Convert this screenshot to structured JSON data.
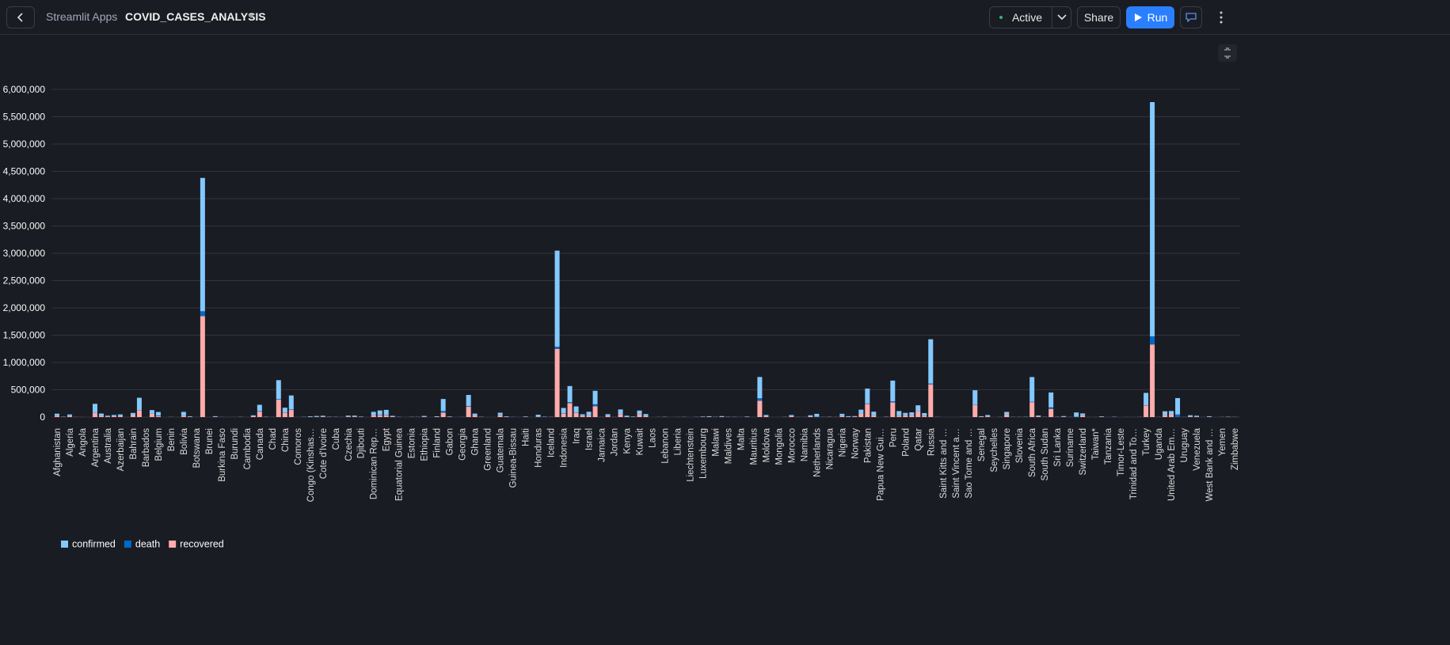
{
  "header": {
    "breadcrumb": "Streamlit Apps",
    "app_name": "COVID_CASES_ANALYSIS",
    "status": "Active",
    "share": "Share",
    "run": "Run"
  },
  "chart_data": {
    "type": "stacked_bar",
    "categories": [
      "Afghanistan",
      null,
      "Algeria",
      null,
      "Angola",
      null,
      "Argentina",
      null,
      "Australia",
      null,
      "Azerbaijan",
      null,
      "Bahrain",
      null,
      "Barbados",
      null,
      "Belgium",
      null,
      "Benin",
      null,
      "Bolivia",
      null,
      "Botswana",
      null,
      "Brunei",
      null,
      "Burkina Faso",
      null,
      "Burundi",
      null,
      "Cambodia",
      null,
      "Canada",
      null,
      "Chad",
      null,
      "China",
      null,
      "Comoros",
      null,
      "Congo (Kinshas…",
      null,
      "Cote d'Ivoire",
      null,
      "Cuba",
      null,
      "Czechia",
      null,
      "Djibouti",
      null,
      "Dominican Rep…",
      null,
      "Egypt",
      null,
      "Equatorial Guinea",
      null,
      "Estonia",
      null,
      "Ethiopia",
      null,
      "Finland",
      null,
      "Gabon",
      null,
      "Georgia",
      null,
      "Ghana",
      null,
      "Greenland",
      null,
      "Guatemala",
      null,
      "Guinea-Bissau",
      null,
      "Haiti",
      null,
      "Honduras",
      null,
      "Iceland",
      null,
      "Indonesia",
      null,
      "Iraq",
      null,
      "Israel",
      null,
      "Jamaica",
      null,
      "Jordan",
      null,
      "Kenya",
      null,
      "Kuwait",
      null,
      "Laos",
      null,
      "Lebanon",
      null,
      "Liberia",
      null,
      "Liechtenstein",
      null,
      "Luxembourg",
      null,
      "Malawi",
      null,
      "Maldives",
      null,
      "Malta",
      null,
      "Mauritius",
      null,
      "Moldova",
      null,
      "Mongolia",
      null,
      "Morocco",
      null,
      "Namibia",
      null,
      "Netherlands",
      null,
      "Nicaragua",
      null,
      "Nigeria",
      null,
      "Norway",
      null,
      "Pakistan",
      null,
      "Papua New Gui…",
      null,
      "Peru",
      null,
      "Poland",
      null,
      "Qatar",
      null,
      "Russia",
      null,
      "Saint Kitts and …",
      null,
      "Saint Vincent a…",
      null,
      "Sao Tome and …",
      null,
      "Senegal",
      null,
      "Seychelles",
      null,
      "Singapore",
      null,
      "Slovenia",
      null,
      "South Africa",
      null,
      "South Sudan",
      null,
      "Sri Lanka",
      null,
      "Suriname",
      null,
      "Switzerland",
      null,
      "Taiwan*",
      null,
      "Tanzania",
      null,
      "Timor-Leste",
      null,
      "Trinidad and To…",
      null,
      "Turkey",
      null,
      "Uganda",
      null,
      "United Arab Em…",
      null,
      "Uruguay",
      null,
      "Venezuela",
      null,
      "West Bank and …",
      null,
      "Yemen",
      null,
      "Zimbabwe"
    ],
    "series": [
      {
        "name": "confirmed",
        "color": "#83c9ff",
        "values": [
          36000,
          4900,
          28000,
          900,
          950,
          86,
          167000,
          37000,
          15300,
          20500,
          30000,
          380,
          39500,
          226000,
          110,
          67000,
          66400,
          48,
          1770,
          99,
          71000,
          10500,
          740,
          2442000,
          141,
          10600,
          1100,
          350,
          380,
          2300,
          230,
          17000,
          116000,
          4600,
          900,
          347000,
          86700,
          257000,
          350,
          3200,
          8900,
          15800,
          15300,
          4400,
          2500,
          1050,
          15500,
          13500,
          5000,
          18,
          64000,
          81000,
          92000,
          14600,
          3070,
          265,
          2030,
          2300,
          14500,
          27,
          7400,
          220000,
          7000,
          326,
          1100,
          206000,
          33600,
          4200,
          14,
          23,
          45000,
          7000,
          1950,
          340,
          7300,
          12,
          37000,
          4400,
          1850,
          1760000,
          102000,
          296000,
          112000,
          25900,
          63000,
          246000,
          800,
          31000,
          1170,
          84000,
          17000,
          7400,
          64000,
          33000,
          20,
          1200,
          3600,
          500,
          1150,
          2800,
          89,
          2000,
          6300,
          9700,
          3700,
          8900,
          3400,
          2500,
          700,
          6200,
          344,
          390000,
          23000,
          116,
          290,
          2600,
          21400,
          1700,
          1840,
          18700,
          53000,
          1560,
          3700,
          1130,
          41000,
          10000,
          9100,
          77000,
          274000,
          62000,
          60,
          4500,
          380000,
          82000,
          43000,
          50000,
          109000,
          45000,
          812000,
          1800,
          17,
          22,
          52,
          700,
          865,
          266000,
          9800,
          24000,
          114,
          1800,
          50000,
          2100,
          2000,
          3200,
          452000,
          14200,
          2300,
          272000,
          2800,
          11400,
          1400,
          79000,
          34000,
          670,
          467,
          7200,
          509,
          3300,
          24,
          870,
          148,
          1450,
          227000,
          4290000,
          1100,
          67000,
          59000,
          301000,
          1200,
          21000,
          15500,
          430,
          11500,
          10,
          1690,
          4600,
          2700
        ]
      },
      {
        "name": "death",
        "color": "#0068c9",
        "values": [
          1270,
          150,
          1150,
          52,
          41,
          3,
          3060,
          710,
          167,
          710,
          420,
          11,
          140,
          2960,
          7,
          540,
          9820,
          2,
          35,
          0,
          2650,
          295,
          2,
          87600,
          3,
          340,
          53,
          6,
          1,
          22,
          0,
          390,
          8900,
          59,
          75,
          9100,
          4660,
          8800,
          7,
          54,
          210,
          115,
          96,
          139,
          87,
          19,
          375,
          613,
          58,
          0,
          1080,
          5500,
          4650,
          410,
          51,
          0,
          69,
          34,
          230,
          1,
          329,
          30200,
          49,
          8,
          16,
          9120,
          168,
          203,
          0,
          0,
          1760,
          45,
          26,
          18,
          158,
          0,
          1050,
          596,
          10,
          38000,
          4900,
          16000,
          4460,
          1760,
          470,
          35100,
          10,
          1000,
          11,
          600,
          280,
          185,
          440,
          1300,
          0,
          31,
          51,
          12,
          72,
          64,
          1,
          80,
          114,
          91,
          100,
          124,
          15,
          124,
          9,
          156,
          10,
          43700,
          750,
          4,
          0,
          40,
          330,
          11,
          8,
          48,
          6140,
          22,
          116,
          69,
          860,
          460,
          255,
          400,
          5840,
          1350,
          0,
          40,
          18000,
          1900,
          1690,
          1700,
          165,
          2200,
          13300,
          5,
          0,
          0,
          0,
          42,
          15,
          2730,
          190,
          540,
          0,
          66,
          27,
          28,
          116,
          93,
          7070,
          300,
          46,
          28400,
          11,
          720,
          21,
          5700,
          1980,
          40,
          7,
          60,
          21,
          58,
          0,
          18,
          8,
          50,
          5630,
          148000,
          2,
          1630,
          345,
          45800,
          35,
          120,
          146,
          0,
          80,
          1,
          480,
          140,
          36
        ]
      },
      {
        "name": "recovered",
        "color": "#ffabab",
        "values": [
          25000,
          2700,
          18800,
          800,
          240,
          65,
          72500,
          26600,
          9300,
          18200,
          18000,
          90,
          36000,
          125000,
          94,
          60500,
          17000,
          19,
          1040,
          86,
          21500,
          4300,
          63,
          1850000,
          138,
          5600,
          930,
          290,
          300,
          1500,
          150,
          14500,
          100000,
          1550,
          800,
          320000,
          80500,
          130000,
          310,
          850,
          5500,
          4500,
          8900,
          2700,
          2300,
          850,
          11000,
          12300,
          4900,
          18,
          31000,
          34500,
          35000,
          7600,
          840,
          195,
          1900,
          1000,
          6400,
          18,
          6900,
          81000,
          4600,
          66,
          920,
          190000,
          30000,
          1370,
          13,
          23,
          33000,
          6000,
          800,
          180,
          4500,
          12,
          4900,
          3400,
          1830,
          1250000,
          60000,
          256000,
          79000,
          23300,
          34000,
          199000,
          700,
          21000,
          1020,
          55000,
          7500,
          3400,
          55000,
          21000,
          19,
          1040,
          1700,
          150,
          620,
          580,
          86,
          1640,
          4800,
          6200,
          1600,
          8600,
          2600,
          1900,
          660,
          4400,
          332,
          300000,
          16000,
          100,
          222,
          900,
          16400,
          630,
          100,
          13500,
          190,
          1500,
          2500,
          1030,
          18000,
          5700,
          8700,
          58000,
          242000,
          35000,
          11,
          2200,
          270000,
          26000,
          32000,
          35000,
          106000,
          26000,
          600000,
          1000,
          15,
          19,
          39,
          650,
          780,
          222000,
          6400,
          13000,
          39,
          1300,
          45000,
          1500,
          1500,
          1600,
          274000,
          13000,
          1200,
          150000,
          2500,
          6000,
          1000,
          0,
          30900,
          200,
          440,
          5800,
          183,
          3100,
          24,
          600,
          128,
          1150,
          210000,
          1330000,
          990,
          37000,
          52000,
          1430,
          1000,
          11600,
          9000,
          370,
          4000,
          8,
          830,
          2900,
          530
        ]
      }
    ],
    "ylim": [
      0,
      6000000
    ],
    "yticks": [
      0,
      {
        "value": 500000,
        "label": "500,000"
      },
      {
        "value": 1000000,
        "label": "1,000,000"
      },
      {
        "value": 1500000,
        "label": "1,500,000"
      },
      {
        "value": 2000000,
        "label": "2,000,000"
      },
      {
        "value": 2500000,
        "label": "2,500,000"
      },
      {
        "value": 3000000,
        "label": "3,000,000"
      },
      {
        "value": 3500000,
        "label": "3,500,000"
      },
      {
        "value": 4000000,
        "label": "4,000,000"
      },
      {
        "value": 4500000,
        "label": "4,500,000"
      },
      {
        "value": 5000000,
        "label": "5,000,000"
      },
      {
        "value": 5500000,
        "label": "5,500,000"
      },
      {
        "value": 6000000,
        "label": "6,000,000"
      }
    ],
    "grid": true,
    "legend": "bottom-left"
  }
}
